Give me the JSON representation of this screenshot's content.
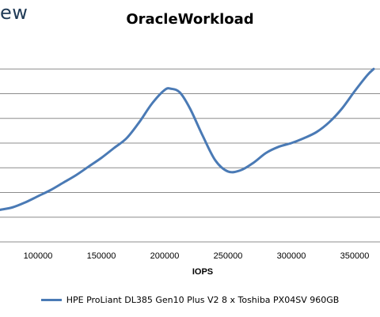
{
  "header": {
    "logo_fragment": "ew"
  },
  "chart_data": {
    "type": "line",
    "title": "OracleWorkload",
    "xlabel": "IOPS",
    "ylabel": "",
    "xlim": [
      70000,
      370000
    ],
    "ylim": [
      0,
      8
    ],
    "x_ticks": [
      "100000",
      "150000",
      "200000",
      "250000",
      "300000",
      "350000"
    ],
    "grid": true,
    "legend_position": "bottom",
    "series": [
      {
        "name": "HPE ProLiant DL385 Gen10 Plus V2 8 x Toshiba PX04SV 960GB",
        "color": "#4a7ab5",
        "points": [
          [
            70000,
            1.3
          ],
          [
            80000,
            1.4
          ],
          [
            90000,
            1.6
          ],
          [
            100000,
            1.85
          ],
          [
            110000,
            2.1
          ],
          [
            120000,
            2.4
          ],
          [
            130000,
            2.7
          ],
          [
            140000,
            3.05
          ],
          [
            150000,
            3.4
          ],
          [
            160000,
            3.8
          ],
          [
            170000,
            4.2
          ],
          [
            180000,
            4.85
          ],
          [
            190000,
            5.6
          ],
          [
            200000,
            6.15
          ],
          [
            205000,
            6.2
          ],
          [
            212000,
            6.05
          ],
          [
            220000,
            5.4
          ],
          [
            230000,
            4.3
          ],
          [
            240000,
            3.3
          ],
          [
            250000,
            2.85
          ],
          [
            260000,
            2.9
          ],
          [
            270000,
            3.2
          ],
          [
            280000,
            3.6
          ],
          [
            290000,
            3.85
          ],
          [
            300000,
            4.0
          ],
          [
            310000,
            4.2
          ],
          [
            320000,
            4.45
          ],
          [
            330000,
            4.85
          ],
          [
            340000,
            5.4
          ],
          [
            350000,
            6.1
          ],
          [
            360000,
            6.75
          ],
          [
            365000,
            7.0
          ]
        ]
      }
    ]
  }
}
